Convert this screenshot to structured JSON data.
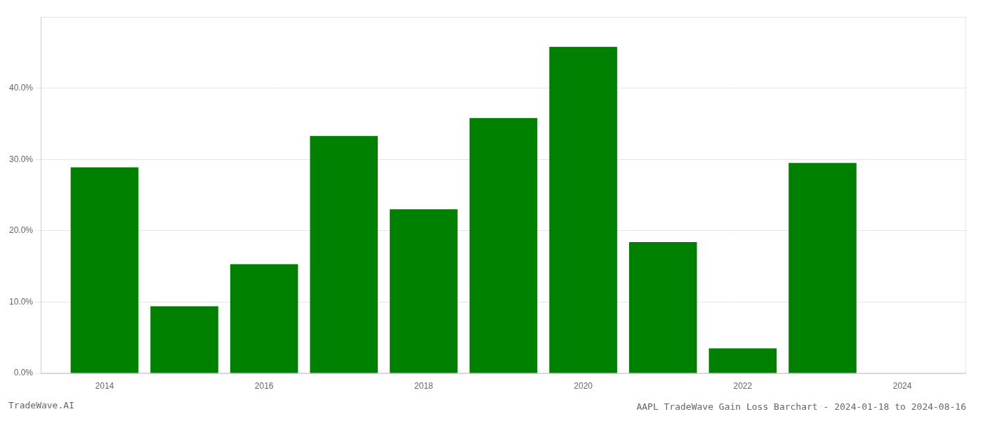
{
  "chart_data": {
    "type": "bar",
    "title": "AAPL TradeWave Gain Loss Barchart - 2024-01-18 to 2024-08-16",
    "annotations": [
      "TradeWave.AI"
    ],
    "x": [
      2014,
      2015,
      2016,
      2017,
      2018,
      2019,
      2020,
      2021,
      2022,
      2023
    ],
    "values": [
      0.289,
      0.094,
      0.153,
      0.333,
      0.23,
      0.358,
      0.458,
      0.184,
      0.035,
      0.295
    ],
    "color": "#008000",
    "xlim": [
      2013.2,
      2024.8
    ],
    "xticks": [
      2014,
      2016,
      2018,
      2020,
      2022,
      2024
    ],
    "ylim": [
      0.0,
      0.5
    ],
    "yticks": [
      {
        "value": 0.0,
        "label": "0.0%"
      },
      {
        "value": 0.1,
        "label": "10.0%"
      },
      {
        "value": 0.2,
        "label": "20.0%"
      },
      {
        "value": 0.3,
        "label": "30.0%"
      },
      {
        "value": 0.4,
        "label": "40.0%"
      }
    ],
    "grid": true
  }
}
